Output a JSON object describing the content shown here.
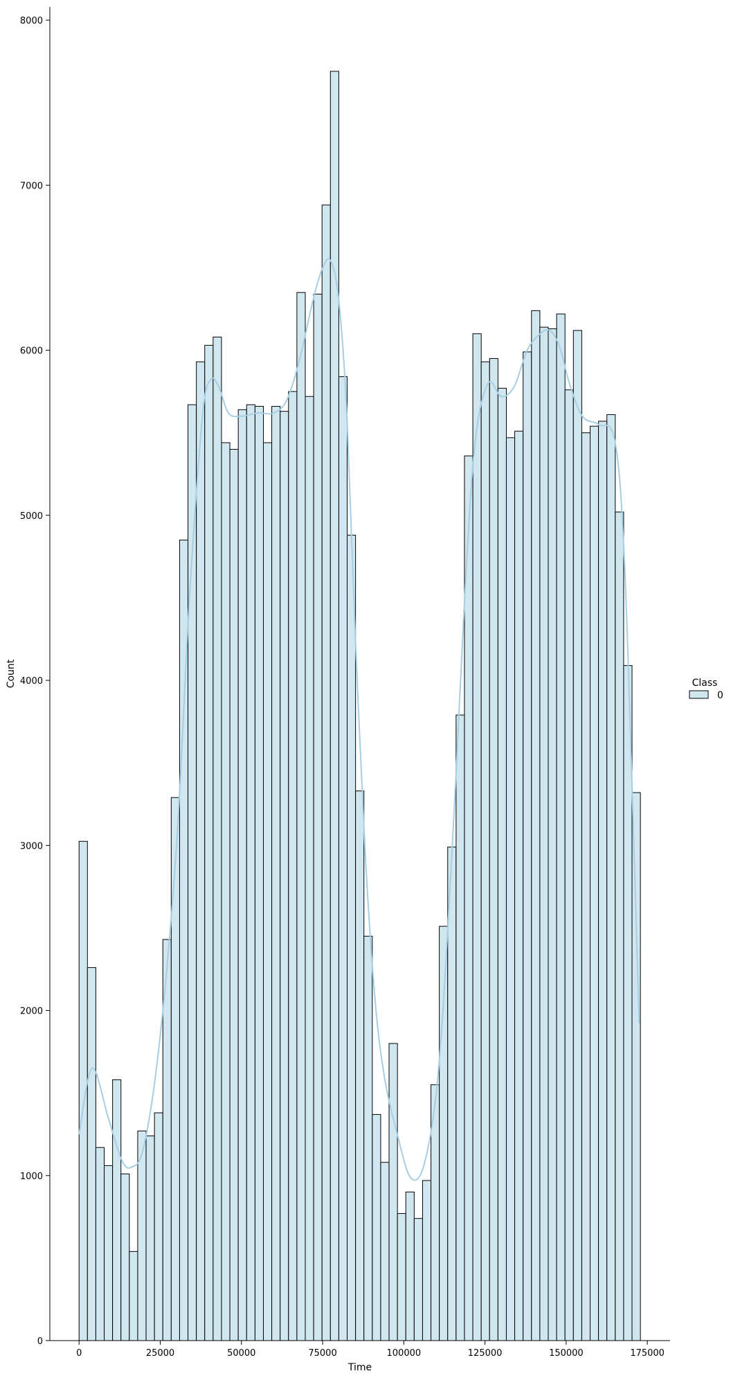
{
  "chart_data": {
    "type": "bar",
    "subtype": "histogram_with_kde",
    "xlabel": "Time",
    "ylabel": "Count",
    "xlim": [
      -9000,
      182000
    ],
    "ylim": [
      0,
      8080
    ],
    "xticks": [
      0,
      25000,
      50000,
      75000,
      100000,
      125000,
      150000,
      175000
    ],
    "yticks": [
      0,
      1000,
      2000,
      3000,
      4000,
      5000,
      6000,
      7000,
      8000
    ],
    "bin_start": 0,
    "bin_width": 2580,
    "values": [
      3025,
      2260,
      1170,
      1060,
      1580,
      1010,
      540,
      1270,
      1240,
      1380,
      2430,
      3290,
      4850,
      5670,
      5930,
      6030,
      6080,
      5440,
      5400,
      5640,
      5670,
      5660,
      5440,
      5660,
      5630,
      5750,
      6350,
      5720,
      6340,
      6880,
      7690,
      5840,
      4880,
      3330,
      2450,
      1370,
      1080,
      1800,
      770,
      900,
      740,
      970,
      1550,
      2510,
      2990,
      3790,
      5360,
      6100,
      5930,
      5950,
      5770,
      5470,
      5510,
      5990,
      6240,
      6140,
      6130,
      6220,
      5760,
      6120,
      5500,
      5540,
      5570,
      5610,
      5020,
      4090,
      3320
    ],
    "kde": {
      "x": [
        0,
        4000,
        9000,
        13000,
        16000,
        20000,
        25000,
        30000,
        34000,
        38000,
        40500,
        43000,
        46000,
        50000,
        55000,
        60000,
        64000,
        68000,
        72000,
        75000,
        77500,
        80000,
        82500,
        85000,
        88000,
        91000,
        94000,
        98000,
        102000,
        106000,
        110000,
        113000,
        116000,
        119000,
        122000,
        126000,
        130000,
        134000,
        138000,
        142000,
        145000,
        148000,
        151000,
        155000,
        160000,
        165000,
        168000,
        171000,
        172500
      ],
      "y": [
        1250,
        1650,
        1350,
        1100,
        1050,
        1180,
        1850,
        3000,
        4500,
        5600,
        5820,
        5780,
        5620,
        5600,
        5620,
        5620,
        5700,
        5950,
        6300,
        6500,
        6540,
        6300,
        5600,
        4300,
        3000,
        2100,
        1600,
        1250,
        990,
        1050,
        1500,
        2300,
        3400,
        4600,
        5450,
        5800,
        5720,
        5780,
        6000,
        6100,
        6120,
        6020,
        5800,
        5600,
        5550,
        5450,
        4700,
        2900,
        1920
      ]
    },
    "series": [
      {
        "name": "0",
        "color": "#a6cee3"
      }
    ],
    "legend": {
      "title": "Class",
      "entries": [
        "0"
      ],
      "placement": "right"
    },
    "bar_fill": "#d1e7f0",
    "bar_edge": "#000000",
    "kde_color": "#a6cee3",
    "grid": false
  }
}
